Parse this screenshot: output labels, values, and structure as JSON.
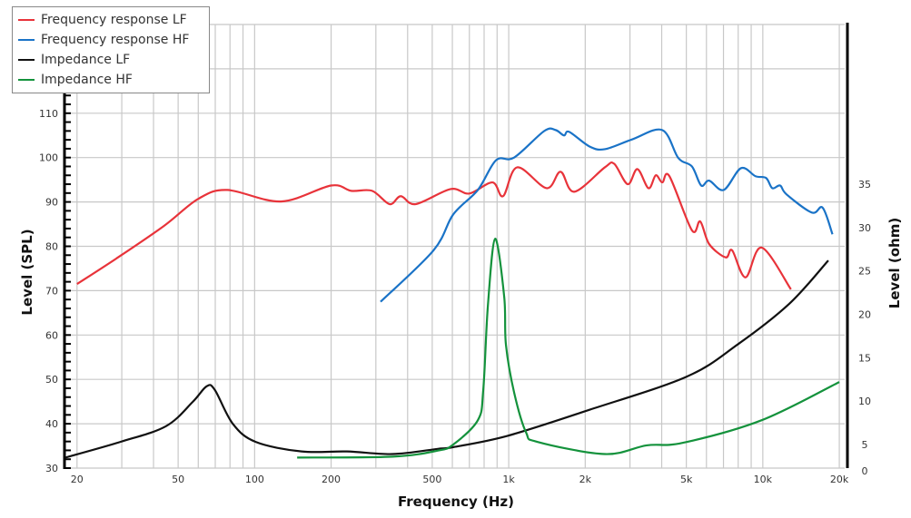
{
  "chart_data": {
    "type": "line",
    "xlabel": "Frequency (Hz)",
    "ylabel": "Level (SPL)",
    "ylabel_right": "Level (ohm)",
    "x_scale": "log",
    "xlim": [
      18,
      21000
    ],
    "ylim": [
      30,
      130
    ],
    "x_ticks": [
      {
        "v": 20,
        "l": "20"
      },
      {
        "v": 50,
        "l": "50"
      },
      {
        "v": 100,
        "l": "100"
      },
      {
        "v": 200,
        "l": "200"
      },
      {
        "v": 500,
        "l": "500"
      },
      {
        "v": 1000,
        "l": "1k"
      },
      {
        "v": 2000,
        "l": "2k"
      },
      {
        "v": 5000,
        "l": "5k"
      },
      {
        "v": 10000,
        "l": "10k"
      },
      {
        "v": 20000,
        "l": "20k"
      }
    ],
    "y_ticks": [
      30,
      40,
      50,
      60,
      70,
      80,
      90,
      100,
      110
    ],
    "y_right_ticks": [
      0,
      5,
      10,
      15,
      20,
      25,
      30,
      35
    ],
    "grid": true,
    "legend_position": "top-left",
    "series": [
      {
        "name": "Frequency response LF",
        "axis": "left",
        "color": "#e8333a",
        "points": [
          [
            20,
            71.5
          ],
          [
            29,
            77.5
          ],
          [
            44,
            84.6
          ],
          [
            60,
            90.7
          ],
          [
            78,
            92.7
          ],
          [
            127,
            90.1
          ],
          [
            200,
            93.7
          ],
          [
            240,
            92.5
          ],
          [
            290,
            92.5
          ],
          [
            340,
            89.5
          ],
          [
            376,
            91.3
          ],
          [
            430,
            89.5
          ],
          [
            590,
            92.9
          ],
          [
            700,
            91.9
          ],
          [
            863,
            94.4
          ],
          [
            950,
            91.3
          ],
          [
            1080,
            97.8
          ],
          [
            1410,
            93.1
          ],
          [
            1600,
            96.8
          ],
          [
            1810,
            92.3
          ],
          [
            2390,
            97.8
          ],
          [
            2600,
            98.6
          ],
          [
            2940,
            94
          ],
          [
            3210,
            97.4
          ],
          [
            3550,
            93.1
          ],
          [
            3790,
            96
          ],
          [
            4020,
            94.4
          ],
          [
            4290,
            95.8
          ],
          [
            5260,
            83.6
          ],
          [
            5670,
            85.6
          ],
          [
            6150,
            80.5
          ],
          [
            7140,
            77.5
          ],
          [
            7570,
            79.1
          ],
          [
            8550,
            73
          ],
          [
            9900,
            79.7
          ],
          [
            12900,
            70.3
          ]
        ]
      },
      {
        "name": "Frequency response HF",
        "axis": "left",
        "color": "#1a73c7",
        "points": [
          [
            313,
            67.5
          ],
          [
            506,
            79.1
          ],
          [
            605,
            87.2
          ],
          [
            756,
            92.7
          ],
          [
            891,
            99.4
          ],
          [
            1050,
            100
          ],
          [
            1380,
            106
          ],
          [
            1530,
            106.2
          ],
          [
            1650,
            105
          ],
          [
            1730,
            105.8
          ],
          [
            2080,
            102.5
          ],
          [
            2390,
            101.9
          ],
          [
            3060,
            104.1
          ],
          [
            4020,
            106.2
          ],
          [
            4650,
            99.9
          ],
          [
            5260,
            98
          ],
          [
            5720,
            93.7
          ],
          [
            6150,
            94.8
          ],
          [
            7020,
            92.7
          ],
          [
            8200,
            97.6
          ],
          [
            9360,
            95.8
          ],
          [
            10300,
            95.4
          ],
          [
            10900,
            93.1
          ],
          [
            11700,
            93.7
          ],
          [
            12400,
            91.7
          ],
          [
            15600,
            87.6
          ],
          [
            17200,
            88.7
          ],
          [
            18800,
            82.7
          ]
        ]
      },
      {
        "name": "Impedance LF",
        "axis": "right",
        "color": "#111111",
        "points": [
          [
            18,
            3.5
          ],
          [
            29.6,
            5.3
          ],
          [
            44.7,
            7.1
          ],
          [
            57,
            9.9
          ],
          [
            64.7,
            11.7
          ],
          [
            69.7,
            11.3
          ],
          [
            82,
            7.4
          ],
          [
            101,
            5.3
          ],
          [
            153,
            4.2
          ],
          [
            231,
            4.2
          ],
          [
            349,
            3.9
          ],
          [
            526,
            4.5
          ],
          [
            605,
            4.7
          ],
          [
            990,
            6.0
          ],
          [
            2080,
            9.0
          ],
          [
            5000,
            12.8
          ],
          [
            7940,
            16.5
          ],
          [
            12700,
            21.2
          ],
          [
            18100,
            26.2
          ]
        ]
      },
      {
        "name": "Impedance HF",
        "axis": "right",
        "color": "#14923c",
        "points": [
          [
            147,
            3.5
          ],
          [
            349,
            3.6
          ],
          [
            526,
            4.3
          ],
          [
            605,
            5.0
          ],
          [
            756,
            7.8
          ],
          [
            794,
            11.3
          ],
          [
            828,
            21
          ],
          [
            884,
            28.7
          ],
          [
            960,
            22
          ],
          [
            975,
            16.5
          ],
          [
            1050,
            11
          ],
          [
            1170,
            6.4
          ],
          [
            1300,
            5.3
          ],
          [
            2390,
            3.9
          ],
          [
            3490,
            4.9
          ],
          [
            4850,
            5.2
          ],
          [
            9900,
            7.8
          ],
          [
            20000,
            12.2
          ]
        ]
      }
    ]
  }
}
